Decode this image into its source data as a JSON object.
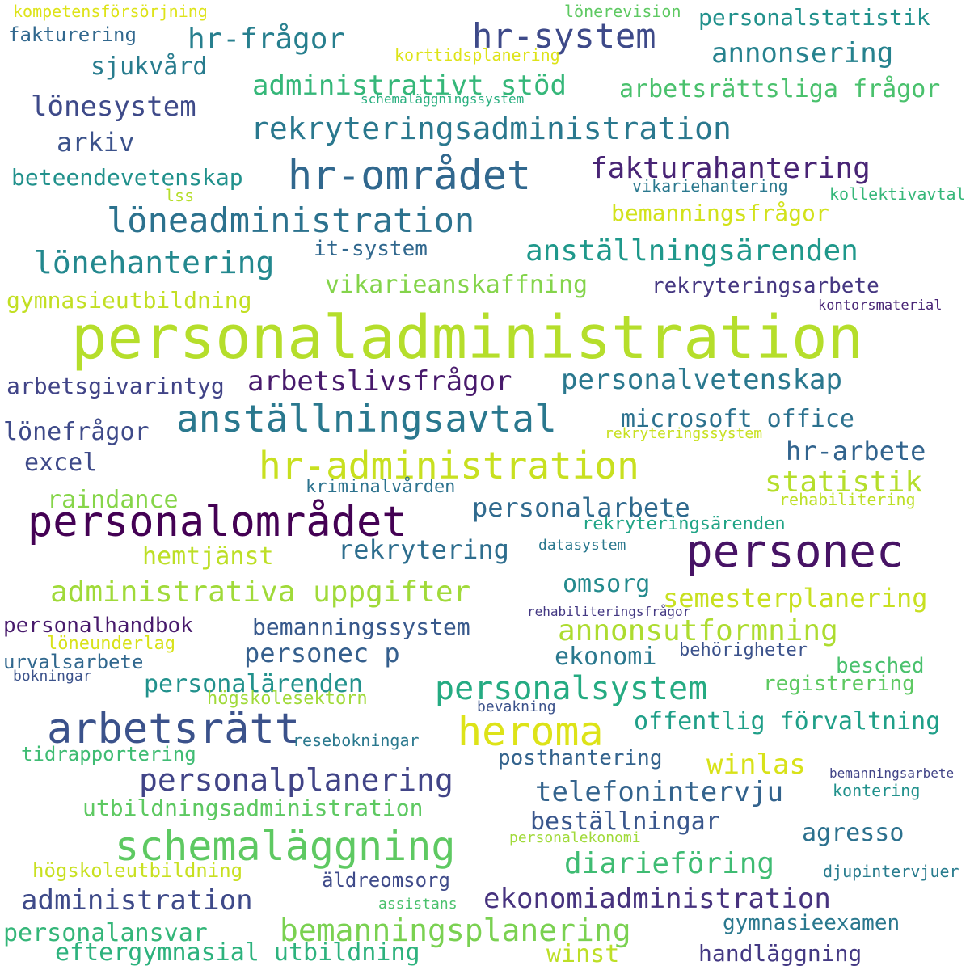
{
  "word_cloud": {
    "words": [
      {
        "text": "personaladministration",
        "color": "#b5de2b"
      },
      {
        "text": "personalområdet",
        "color": "#440154"
      },
      {
        "text": "personec",
        "color": "#471365"
      },
      {
        "text": "hr-området",
        "color": "#31688e"
      },
      {
        "text": "anställningsavtal",
        "color": "#2a788e"
      },
      {
        "text": "hr-administration",
        "color": "#c8e020"
      },
      {
        "text": "schemaläggning",
        "color": "#5ec962"
      },
      {
        "text": "arbetsrätt",
        "color": "#3b528b"
      },
      {
        "text": "heroma",
        "color": "#dde318"
      },
      {
        "text": "hr-system",
        "color": "#3e4a89"
      },
      {
        "text": "löneadministration",
        "color": "#2c728e"
      },
      {
        "text": "rekryteringsadministration",
        "color": "#2a788e"
      },
      {
        "text": "personalsystem",
        "color": "#25ab82"
      },
      {
        "text": "bemanningsplanering",
        "color": "#7ad151"
      },
      {
        "text": "personalplanering",
        "color": "#414487"
      },
      {
        "text": "hr-frågor",
        "color": "#277f8e"
      },
      {
        "text": "lönehantering",
        "color": "#23888e"
      },
      {
        "text": "anställningsärenden",
        "color": "#1f988b"
      },
      {
        "text": "fakturahantering",
        "color": "#482475"
      },
      {
        "text": "arbetslivsfrågor",
        "color": "#481a6c"
      },
      {
        "text": "personalvetenskap",
        "color": "#2a788e"
      },
      {
        "text": "administrativa uppgifter",
        "color": "#a0da39"
      },
      {
        "text": "ekonomiadministration",
        "color": "#46327e"
      },
      {
        "text": "administration",
        "color": "#3e4a89"
      },
      {
        "text": "annonsutformning",
        "color": "#addc30"
      },
      {
        "text": "diarieföring",
        "color": "#3fbc73"
      },
      {
        "text": "telefonintervju",
        "color": "#33638d"
      },
      {
        "text": "administrativt stöd",
        "color": "#35b779"
      },
      {
        "text": "lönesystem",
        "color": "#3e4a89"
      },
      {
        "text": "annonsering",
        "color": "#26828e"
      },
      {
        "text": "personalstatistik",
        "color": "#21918c"
      },
      {
        "text": "arbetsrättsliga frågor",
        "color": "#4ac16d"
      },
      {
        "text": "statistik",
        "color": "#b5de2b"
      },
      {
        "text": "hr-arbete",
        "color": "#32648e"
      },
      {
        "text": "microsoft office",
        "color": "#2c718e"
      },
      {
        "text": "personalarbete",
        "color": "#306a8e"
      },
      {
        "text": "rekrytering",
        "color": "#2e6e8e"
      },
      {
        "text": "personec p",
        "color": "#355f8d"
      },
      {
        "text": "bemanningssystem",
        "color": "#38598c"
      },
      {
        "text": "semesterplanering",
        "color": "#c8e020"
      },
      {
        "text": "winlas",
        "color": "#d8e219"
      },
      {
        "text": "utbildningsadministration",
        "color": "#5ec962"
      },
      {
        "text": "personalansvar",
        "color": "#34b679"
      },
      {
        "text": "eftergymnasial utbildning",
        "color": "#2db27d"
      },
      {
        "text": "handläggning",
        "color": "#443983"
      },
      {
        "text": "gymnasieexamen",
        "color": "#2a788e"
      },
      {
        "text": "agresso",
        "color": "#2c718e"
      },
      {
        "text": "beställningar",
        "color": "#39568c"
      },
      {
        "text": "offentlig förvaltning",
        "color": "#1f9f88"
      },
      {
        "text": "posthantering",
        "color": "#33638d"
      },
      {
        "text": "personalärenden",
        "color": "#21918c"
      },
      {
        "text": "ekonomi",
        "color": "#2a788e"
      },
      {
        "text": "omsorg",
        "color": "#238a8d"
      },
      {
        "text": "hemtjänst",
        "color": "#bddf26"
      },
      {
        "text": "raindance",
        "color": "#86d549"
      },
      {
        "text": "lönefrågor",
        "color": "#3e4a89"
      },
      {
        "text": "excel",
        "color": "#3e4a89"
      },
      {
        "text": "arbetsgivarintyg",
        "color": "#414487"
      },
      {
        "text": "gymnasieutbildning",
        "color": "#c2df23"
      },
      {
        "text": "vikarieanskaffning",
        "color": "#84d44b"
      },
      {
        "text": "rekryteringsarbete",
        "color": "#453781"
      },
      {
        "text": "it-system",
        "color": "#31688e"
      },
      {
        "text": "bemanningsfrågor",
        "color": "#d2e21b"
      },
      {
        "text": "beteendevetenskap",
        "color": "#21918c"
      },
      {
        "text": "arkiv",
        "color": "#3b528b"
      },
      {
        "text": "sjukvård",
        "color": "#287c8e"
      },
      {
        "text": "fakturering",
        "color": "#31688e"
      },
      {
        "text": "kompetensförsörjning",
        "color": "#dde318"
      },
      {
        "text": "korttidsplanering",
        "color": "#dde318"
      },
      {
        "text": "lönerevision",
        "color": "#5ec962"
      },
      {
        "text": "schemaläggningssystem",
        "color": "#29af7f"
      },
      {
        "text": "vikariehantering",
        "color": "#2a788e"
      },
      {
        "text": "kollektivavtal",
        "color": "#35b779"
      },
      {
        "text": "lss",
        "color": "#b5de2b"
      },
      {
        "text": "kontorsmaterial",
        "color": "#482475"
      },
      {
        "text": "rekryteringssystem",
        "color": "#c8e020"
      },
      {
        "text": "kriminalvården",
        "color": "#2c728e"
      },
      {
        "text": "rehabilitering",
        "color": "#bddf26"
      },
      {
        "text": "rekryteringsärenden",
        "color": "#20a486"
      },
      {
        "text": "datasystem",
        "color": "#2a788e"
      },
      {
        "text": "rehabiliteringsfrågor",
        "color": "#443983"
      },
      {
        "text": "personalhandbok",
        "color": "#481a6c"
      },
      {
        "text": "löneunderlag",
        "color": "#d8e219"
      },
      {
        "text": "urvalsarbete",
        "color": "#31688e"
      },
      {
        "text": "bokningar",
        "color": "#3b528b"
      },
      {
        "text": "behörigheter",
        "color": "#3b528b"
      },
      {
        "text": "besched",
        "color": "#4ac16d"
      },
      {
        "text": "registrering",
        "color": "#5ec962"
      },
      {
        "text": "högskolesektorn",
        "color": "#a0da39"
      },
      {
        "text": "bevakning",
        "color": "#3b528b"
      },
      {
        "text": "resebokningar",
        "color": "#2a788e"
      },
      {
        "text": "tidrapportering",
        "color": "#3fbc73"
      },
      {
        "text": "bemanningsarbete",
        "color": "#414487"
      },
      {
        "text": "kontering",
        "color": "#21918c"
      },
      {
        "text": "personalekonomi",
        "color": "#a0da39"
      },
      {
        "text": "högskoleutbildning",
        "color": "#c8e020"
      },
      {
        "text": "äldreomsorg",
        "color": "#3e4a89"
      },
      {
        "text": "djupintervjuer",
        "color": "#287c8e"
      },
      {
        "text": "assistans",
        "color": "#4ac16d"
      },
      {
        "text": "winst",
        "color": "#bddf26"
      }
    ]
  }
}
